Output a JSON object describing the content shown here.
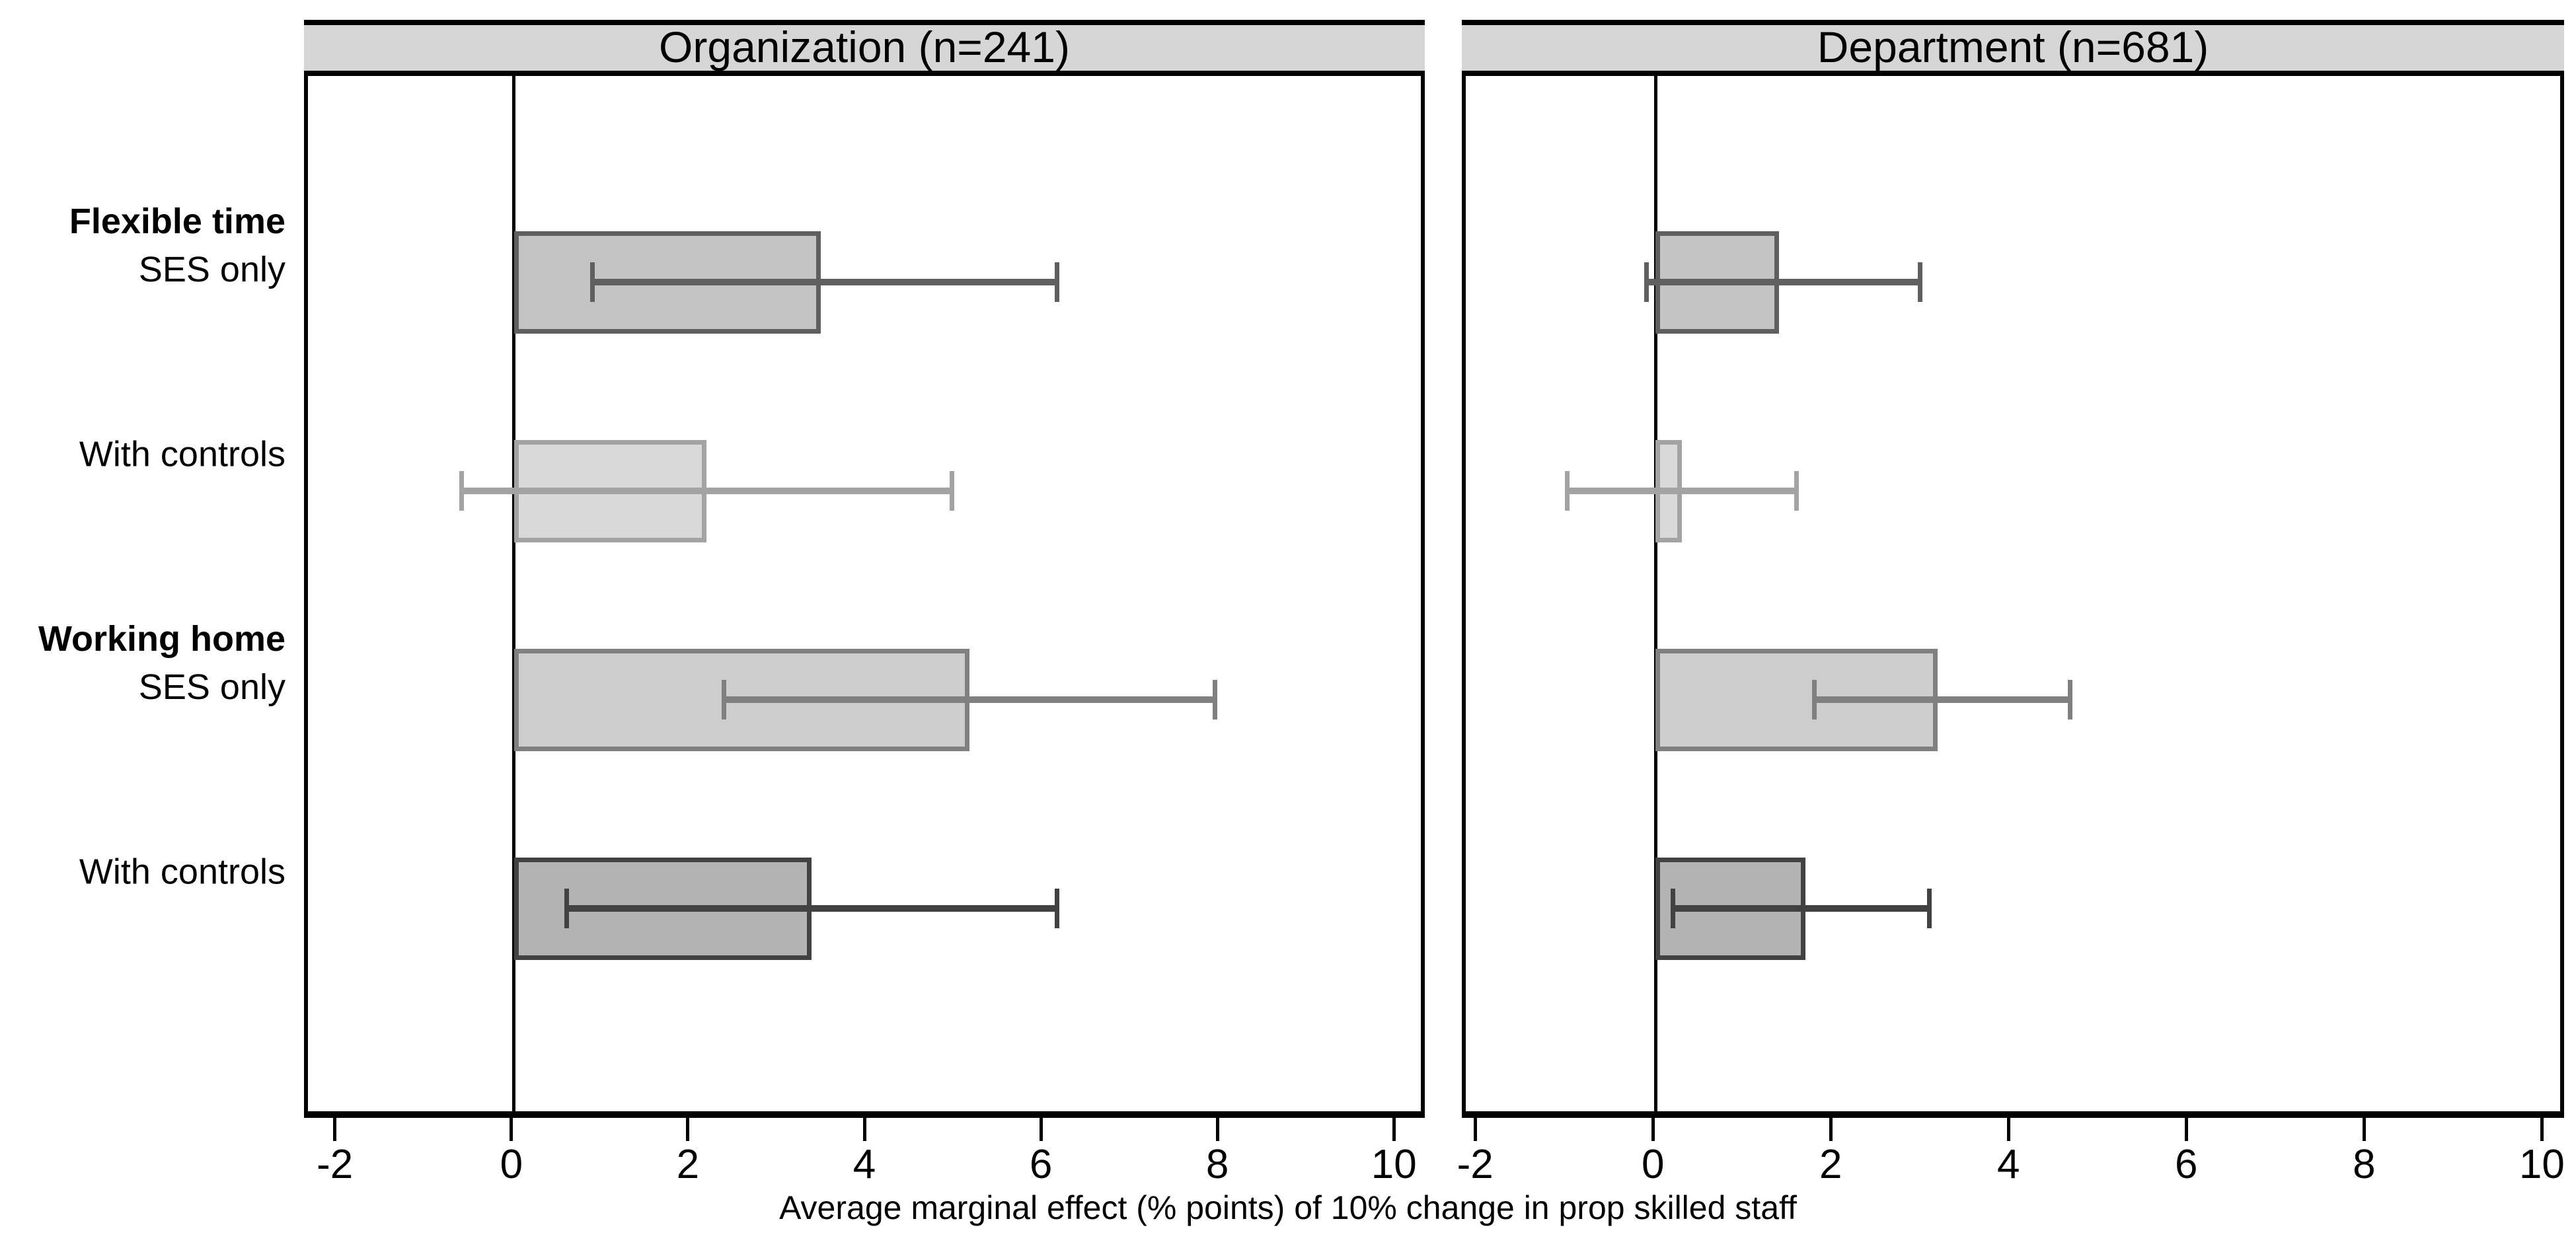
{
  "figure": {
    "row_labels": [
      {
        "group": "Flexible time",
        "sub": "SES only"
      },
      {
        "sub": "With controls"
      },
      {
        "group": "Working home",
        "sub": "SES only"
      },
      {
        "sub": "With controls"
      }
    ]
  },
  "chart_data": {
    "type": "bar",
    "orientation": "horizontal",
    "title": "",
    "xlabel": "Average marginal effect (% points) of 10% change in prop skilled staff",
    "xticks": [
      -2,
      0,
      2,
      4,
      6,
      8,
      10
    ],
    "grid": false,
    "legend": "none",
    "categories": [
      "Flexible time / SES only",
      "Flexible time / With controls",
      "Working home / SES only",
      "Working home / With controls"
    ],
    "panels": [
      {
        "title": "Organization (n=241)",
        "xlim": [
          -2.35,
          10.35
        ],
        "values": [
          3.5,
          2.2,
          5.2,
          3.4
        ],
        "ci_low": [
          0.9,
          -0.6,
          2.4,
          0.6
        ],
        "ci_high": [
          6.2,
          5.0,
          8.0,
          6.2
        ]
      },
      {
        "title": "Department (n=681)",
        "xlim": [
          -2.15,
          10.25
        ],
        "values": [
          1.4,
          0.3,
          3.2,
          1.7
        ],
        "ci_low": [
          -0.1,
          -1.0,
          1.8,
          0.2
        ],
        "ci_high": [
          3.0,
          1.6,
          4.7,
          3.1
        ]
      }
    ],
    "bar_styles": [
      {
        "fill": "#c3c3c3",
        "stroke": "#5f5f5f"
      },
      {
        "fill": "#d9d9d9",
        "stroke": "#a3a3a3"
      },
      {
        "fill": "#cdcdcd",
        "stroke": "#808080"
      },
      {
        "fill": "#b3b3b3",
        "stroke": "#424242"
      }
    ],
    "colors": {
      "header_fill": "#d6d6d6",
      "axis": "#000000",
      "background": "#ffffff"
    }
  }
}
